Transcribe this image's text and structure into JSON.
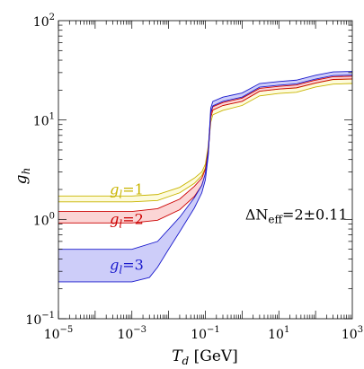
{
  "chart_data": {
    "type": "area",
    "title": "",
    "xlabel": "T_d [GeV]",
    "xlabel_main": "T",
    "xlabel_sub": "d",
    "xlabel_unit": " [GeV]",
    "ylabel": "g_h",
    "ylabel_main": "g",
    "ylabel_sub": "h",
    "xscale": "log",
    "yscale": "log",
    "xlim": [
      1e-05,
      1000
    ],
    "ylim": [
      0.1,
      100
    ],
    "grid": false,
    "legend": "none",
    "x_ticks": [
      {
        "base": "10",
        "exp": "−5",
        "value": 1e-05
      },
      {
        "base": "10",
        "exp": "−3",
        "value": 0.001
      },
      {
        "base": "10",
        "exp": "−1",
        "value": 0.1
      },
      {
        "base": "10",
        "exp": "1",
        "value": 10
      },
      {
        "base": "10",
        "exp": "3",
        "value": 1000
      }
    ],
    "y_ticks": [
      {
        "base": "10",
        "exp": "−1",
        "value": 0.1
      },
      {
        "base": "10",
        "exp": "0",
        "value": 1
      },
      {
        "base": "10",
        "exp": "1",
        "value": 10
      },
      {
        "base": "10",
        "exp": "2",
        "value": 100
      }
    ],
    "annotation": {
      "main": "ΔN",
      "sub": "eff",
      "rest": "=2±0.11",
      "x": 30,
      "y": 1.0
    },
    "series": [
      {
        "label_main": "g",
        "label_sub": "l",
        "label_rest": "=1",
        "label_x": 0.00025,
        "label_y": 1.78,
        "stroke": "#c8b400",
        "fill": "#fdfbd8",
        "upper": [
          [
            1e-05,
            1.72
          ],
          [
            0.001,
            1.72
          ],
          [
            0.005,
            1.78
          ],
          [
            0.02,
            2.1
          ],
          [
            0.05,
            2.6
          ],
          [
            0.08,
            3.0
          ],
          [
            0.1,
            3.6
          ],
          [
            0.12,
            5.5
          ],
          [
            0.14,
            11.0
          ],
          [
            0.16,
            12.8
          ],
          [
            0.3,
            14.0
          ],
          [
            1,
            15.5
          ],
          [
            3,
            19.5
          ],
          [
            10,
            20.5
          ],
          [
            30,
            21.0
          ],
          [
            100,
            23.5
          ],
          [
            300,
            25.5
          ],
          [
            1000,
            25.8
          ]
        ],
        "lower": [
          [
            1e-05,
            1.5
          ],
          [
            0.001,
            1.5
          ],
          [
            0.005,
            1.55
          ],
          [
            0.02,
            1.85
          ],
          [
            0.05,
            2.3
          ],
          [
            0.08,
            2.75
          ],
          [
            0.1,
            3.3
          ],
          [
            0.12,
            5.0
          ],
          [
            0.14,
            9.5
          ],
          [
            0.16,
            11.3
          ],
          [
            0.3,
            12.5
          ],
          [
            1,
            14.0
          ],
          [
            3,
            17.5
          ],
          [
            10,
            18.5
          ],
          [
            30,
            19.0
          ],
          [
            100,
            21.5
          ],
          [
            300,
            23.0
          ],
          [
            1000,
            23.3
          ]
        ]
      },
      {
        "label_main": "g",
        "label_sub": "l",
        "label_rest": "=2",
        "label_x": 0.00025,
        "label_y": 0.9,
        "stroke": "#cc0000",
        "fill": "#fbd0d0",
        "upper": [
          [
            1e-05,
            1.2
          ],
          [
            0.001,
            1.2
          ],
          [
            0.005,
            1.28
          ],
          [
            0.02,
            1.6
          ],
          [
            0.05,
            2.15
          ],
          [
            0.08,
            2.6
          ],
          [
            0.1,
            3.2
          ],
          [
            0.12,
            5.1
          ],
          [
            0.14,
            11.6
          ],
          [
            0.16,
            13.6
          ],
          [
            0.3,
            15.0
          ],
          [
            1,
            16.6
          ],
          [
            3,
            20.8
          ],
          [
            10,
            21.8
          ],
          [
            30,
            22.5
          ],
          [
            100,
            25.2
          ],
          [
            300,
            27.3
          ],
          [
            1000,
            27.6
          ]
        ],
        "lower": [
          [
            1e-05,
            0.92
          ],
          [
            0.001,
            0.92
          ],
          [
            0.005,
            0.98
          ],
          [
            0.02,
            1.25
          ],
          [
            0.05,
            1.7
          ],
          [
            0.08,
            2.2
          ],
          [
            0.1,
            2.8
          ],
          [
            0.12,
            4.6
          ],
          [
            0.14,
            10.6
          ],
          [
            0.16,
            12.6
          ],
          [
            0.3,
            14.0
          ],
          [
            1,
            15.4
          ],
          [
            3,
            19.5
          ],
          [
            10,
            20.5
          ],
          [
            30,
            21.1
          ],
          [
            100,
            23.6
          ],
          [
            300,
            25.6
          ],
          [
            1000,
            25.9
          ]
        ]
      },
      {
        "label_main": "g",
        "label_sub": "l",
        "label_rest": "=3",
        "label_x": 0.00025,
        "label_y": 0.31,
        "stroke": "#1a1acc",
        "fill": "#c8c8f8",
        "upper": [
          [
            1e-05,
            0.5
          ],
          [
            0.001,
            0.5
          ],
          [
            0.005,
            0.6
          ],
          [
            0.02,
            1.05
          ],
          [
            0.05,
            1.65
          ],
          [
            0.08,
            2.2
          ],
          [
            0.1,
            2.9
          ],
          [
            0.12,
            4.9
          ],
          [
            0.14,
            13.2
          ],
          [
            0.16,
            15.4
          ],
          [
            0.3,
            17.0
          ],
          [
            1,
            18.7
          ],
          [
            3,
            23.3
          ],
          [
            10,
            24.4
          ],
          [
            30,
            25.2
          ],
          [
            100,
            28.2
          ],
          [
            300,
            30.5
          ],
          [
            1000,
            30.8
          ]
        ],
        "lower": [
          [
            1e-05,
            0.235
          ],
          [
            0.001,
            0.235
          ],
          [
            0.003,
            0.26
          ],
          [
            0.005,
            0.33
          ],
          [
            0.01,
            0.5
          ],
          [
            0.02,
            0.75
          ],
          [
            0.05,
            1.3
          ],
          [
            0.08,
            1.85
          ],
          [
            0.1,
            2.5
          ],
          [
            0.12,
            4.4
          ],
          [
            0.14,
            11.9
          ],
          [
            0.16,
            13.9
          ],
          [
            0.3,
            15.4
          ],
          [
            1,
            17.0
          ],
          [
            3,
            21.4
          ],
          [
            10,
            22.4
          ],
          [
            30,
            23.1
          ],
          [
            100,
            25.8
          ],
          [
            300,
            28.0
          ],
          [
            1000,
            28.3
          ]
        ]
      }
    ]
  }
}
